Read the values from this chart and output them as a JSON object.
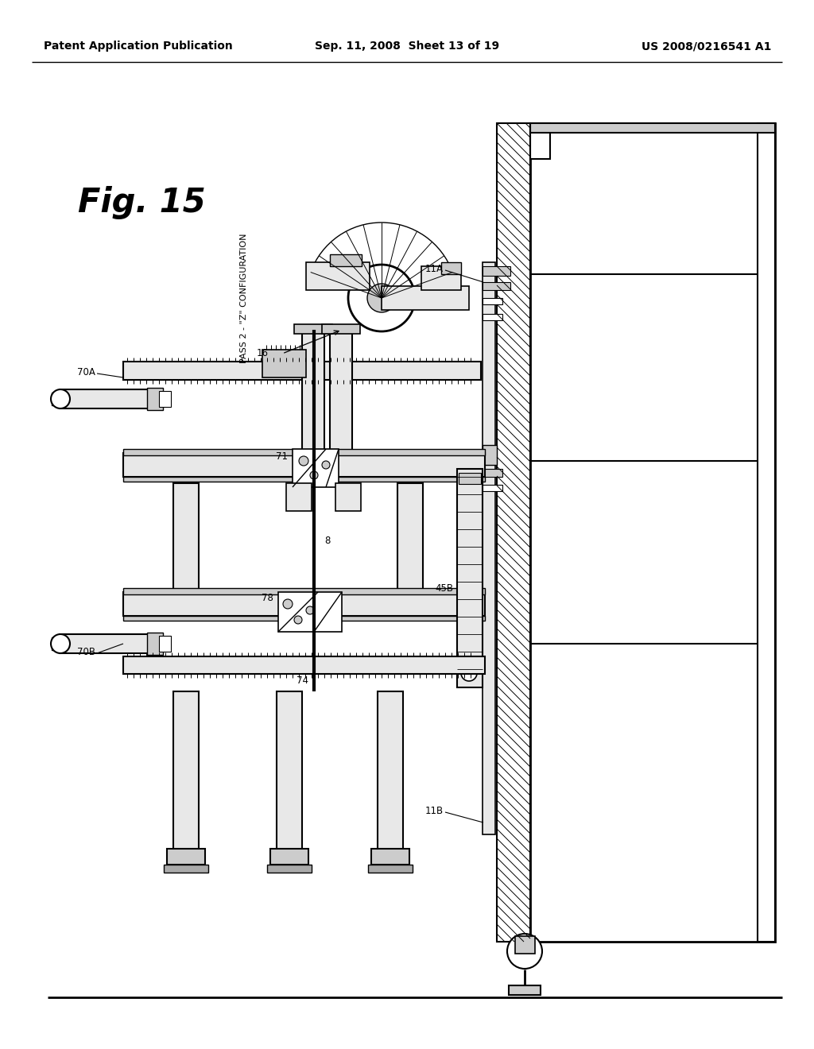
{
  "bg_color": "#ffffff",
  "header_left": "Patent Application Publication",
  "header_mid": "Sep. 11, 2008  Sheet 13 of 19",
  "header_right": "US 2008/0216541 A1",
  "fig_label": "Fig. 15",
  "pass_label": "PASS 2 - \"Z\" CONFIGURATION",
  "line_color": "#000000",
  "fill_light": "#e8e8e8",
  "fill_mid": "#cccccc",
  "fill_dark": "#aaaaaa",
  "fill_hatch": "#bbbbbb",
  "header_fontsize": 10,
  "fig_fontsize": 30,
  "pass_fontsize": 8,
  "label_fontsize": 8.5,
  "lw_outer": 2.0,
  "lw_med": 1.2,
  "lw_thin": 0.7,
  "lw_thick": 2.5
}
